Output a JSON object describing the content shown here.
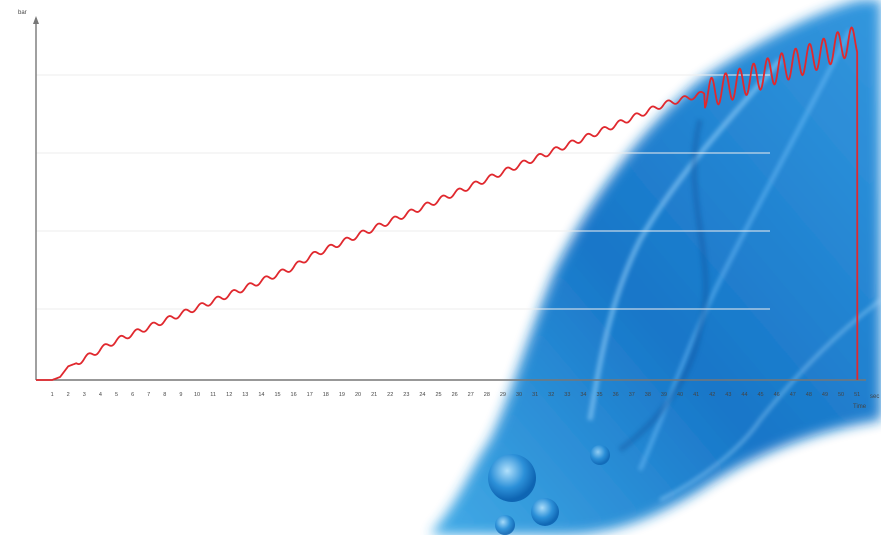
{
  "colors": {
    "background": "#ffffff",
    "axis": "#777777",
    "grid": "#eeeeee",
    "series": "#e0282e",
    "water_dark": "#0a6fc4",
    "water_light": "#5fc0f0"
  },
  "chart_data": {
    "type": "line",
    "title": "",
    "ylabel": "bar",
    "xlabel": "Time",
    "x_unit": "sec",
    "grid": true,
    "legend": "none",
    "xlim": [
      0,
      51.3
    ],
    "ylim": [
      0,
      23.5
    ],
    "x_ticks": [
      "1",
      "2",
      "3",
      "4",
      "5",
      "6",
      "7",
      "8",
      "9",
      "10",
      "11",
      "12",
      "13",
      "14",
      "15",
      "16",
      "17",
      "18",
      "19",
      "20",
      "21",
      "22",
      "23",
      "24",
      "25",
      "26",
      "27",
      "28",
      "29",
      "30",
      "31",
      "32",
      "33",
      "34",
      "35",
      "36",
      "37",
      "38",
      "39",
      "40",
      "41",
      "42",
      "43",
      "44",
      "45",
      "46",
      "47",
      "48",
      "49",
      "50",
      "51",
      "52",
      "53",
      "54",
      "55"
    ],
    "series": [
      {
        "color": "#e0282e",
        "x": [
          0,
          1,
          1.5,
          2,
          2.5,
          3,
          5,
          8,
          12,
          16,
          17,
          20,
          25,
          30,
          35,
          39,
          41.5,
          42,
          44,
          46,
          48,
          49,
          50,
          51,
          51.01
        ],
        "y": [
          0,
          0,
          0.2,
          0.9,
          1.1,
          1.4,
          2.6,
          3.9,
          5.6,
          7.4,
          8.1,
          9.5,
          11.8,
          14.1,
          16.3,
          18.1,
          18.8,
          18.9,
          19.6,
          20.4,
          21.1,
          21.5,
          22.0,
          22.3,
          0
        ]
      }
    ]
  }
}
